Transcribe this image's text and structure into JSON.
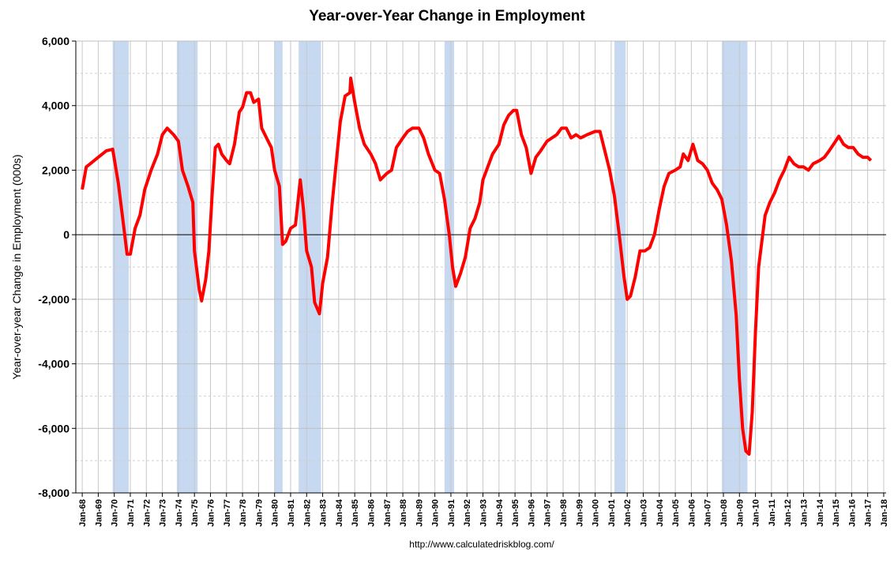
{
  "chart_data": {
    "type": "line",
    "title": "Year-over-Year Change in Employment",
    "y_label": "Year-over-year Change in Employment (000s)",
    "source": "http://www.calculatedriskblog.com/",
    "x": [
      1968.0,
      1968.25,
      1968.5,
      1969.0,
      1969.5,
      1969.9,
      1970.25,
      1970.5,
      1970.8,
      1971.0,
      1971.3,
      1971.6,
      1971.9,
      1972.3,
      1972.7,
      1973.0,
      1973.3,
      1973.7,
      1974.0,
      1974.25,
      1974.6,
      1974.9,
      1975.0,
      1975.3,
      1975.45,
      1975.7,
      1975.9,
      1976.1,
      1976.3,
      1976.5,
      1976.7,
      1977.0,
      1977.2,
      1977.5,
      1977.8,
      1978.0,
      1978.25,
      1978.5,
      1978.7,
      1979.0,
      1979.2,
      1979.5,
      1979.8,
      1980.0,
      1980.3,
      1980.5,
      1980.7,
      1981.0,
      1981.3,
      1981.6,
      1981.8,
      1982.0,
      1982.3,
      1982.5,
      1982.8,
      1983.0,
      1983.3,
      1983.6,
      1983.9,
      1984.1,
      1984.4,
      1984.7,
      1984.75,
      1985.0,
      1985.3,
      1985.6,
      1986.0,
      1986.3,
      1986.6,
      1987.0,
      1987.3,
      1987.6,
      1988.0,
      1988.3,
      1988.6,
      1989.0,
      1989.3,
      1989.6,
      1990.0,
      1990.3,
      1990.6,
      1990.9,
      1991.1,
      1991.3,
      1991.6,
      1991.9,
      1992.2,
      1992.5,
      1992.8,
      1993.0,
      1993.3,
      1993.6,
      1994.0,
      1994.3,
      1994.6,
      1994.9,
      1995.1,
      1995.4,
      1995.7,
      1996.0,
      1996.3,
      1996.6,
      1997.0,
      1997.3,
      1997.6,
      1997.9,
      1998.2,
      1998.5,
      1998.8,
      1999.1,
      1999.5,
      2000.0,
      2000.3,
      2000.6,
      2000.9,
      2001.2,
      2001.5,
      2001.8,
      2002.0,
      2002.2,
      2002.5,
      2002.8,
      2003.1,
      2003.4,
      2003.7,
      2004.0,
      2004.3,
      2004.6,
      2005.0,
      2005.3,
      2005.5,
      2005.8,
      2006.1,
      2006.4,
      2006.7,
      2007.0,
      2007.3,
      2007.6,
      2007.9,
      2008.2,
      2008.5,
      2008.8,
      2009.0,
      2009.2,
      2009.4,
      2009.6,
      2009.8,
      2010.0,
      2010.2,
      2010.4,
      2010.6,
      2010.9,
      2011.2,
      2011.5,
      2011.8,
      2012.1,
      2012.4,
      2012.7,
      2013.0,
      2013.3,
      2013.6,
      2014.0,
      2014.3,
      2014.6,
      2015.0,
      2015.2,
      2015.5,
      2015.8,
      2016.1,
      2016.4,
      2016.7,
      2017.0,
      2017.2
    ],
    "series": [
      {
        "color": "#ff0000",
        "values": [
          1400,
          2100,
          2200,
          2400,
          2600,
          2650,
          1600,
          600,
          -600,
          -600,
          200,
          600,
          1400,
          2000,
          2500,
          3100,
          3300,
          3100,
          2900,
          2000,
          1500,
          1000,
          -500,
          -1700,
          -2050,
          -1400,
          -500,
          1200,
          2700,
          2800,
          2500,
          2300,
          2200,
          2800,
          3800,
          3950,
          4400,
          4400,
          4100,
          4200,
          3300,
          3000,
          2700,
          2000,
          1500,
          -300,
          -200,
          200,
          300,
          1700,
          800,
          -500,
          -1000,
          -2100,
          -2450,
          -1500,
          -700,
          1000,
          2500,
          3500,
          4300,
          4400,
          4850,
          4100,
          3300,
          2800,
          2500,
          2200,
          1700,
          1900,
          2000,
          2700,
          3000,
          3200,
          3300,
          3300,
          3000,
          2500,
          2000,
          1900,
          1100,
          0,
          -1000,
          -1600,
          -1200,
          -700,
          200,
          500,
          1000,
          1700,
          2100,
          2500,
          2800,
          3400,
          3700,
          3850,
          3850,
          3100,
          2700,
          1900,
          2400,
          2600,
          2900,
          3000,
          3100,
          3300,
          3300,
          3000,
          3100,
          3000,
          3100,
          3200,
          3200,
          2600,
          2000,
          1200,
          0,
          -1300,
          -2000,
          -1900,
          -1300,
          -500,
          -500,
          -400,
          0,
          800,
          1500,
          1900,
          2000,
          2100,
          2500,
          2300,
          2800,
          2300,
          2200,
          2000,
          1600,
          1400,
          1100,
          300,
          -800,
          -2500,
          -4500,
          -6000,
          -6700,
          -6800,
          -5500,
          -3000,
          -1000,
          -200,
          600,
          1000,
          1300,
          1700,
          2000,
          2400,
          2200,
          2100,
          2100,
          2000,
          2200,
          2300,
          2400,
          2600,
          2900,
          3050,
          2800,
          2700,
          2700,
          2500,
          2400,
          2400,
          2300
        ]
      }
    ],
    "recessions": [
      [
        1969.9,
        1970.9
      ],
      [
        1973.9,
        1975.2
      ],
      [
        1980.0,
        1980.5
      ],
      [
        1981.5,
        1982.9
      ],
      [
        1990.6,
        1991.2
      ],
      [
        2001.2,
        2001.9
      ],
      [
        2007.9,
        2009.5
      ]
    ],
    "recession_color": "#c6d9f1",
    "xlim": [
      1967.6,
      2018.15
    ],
    "xticks": [
      {
        "value": 1968,
        "label": "Jan-68"
      },
      {
        "value": 1969,
        "label": "Jan-69"
      },
      {
        "value": 1970,
        "label": "Jan-70"
      },
      {
        "value": 1971,
        "label": "Jan-71"
      },
      {
        "value": 1972,
        "label": "Jan-72"
      },
      {
        "value": 1973,
        "label": "Jan-73"
      },
      {
        "value": 1974,
        "label": "Jan-74"
      },
      {
        "value": 1975,
        "label": "Jan-75"
      },
      {
        "value": 1976,
        "label": "Jan-76"
      },
      {
        "value": 1977,
        "label": "Jan-77"
      },
      {
        "value": 1978,
        "label": "Jan-78"
      },
      {
        "value": 1979,
        "label": "Jan-79"
      },
      {
        "value": 1980,
        "label": "Jan-80"
      },
      {
        "value": 1981,
        "label": "Jan-81"
      },
      {
        "value": 1982,
        "label": "Jan-82"
      },
      {
        "value": 1983,
        "label": "Jan-83"
      },
      {
        "value": 1984,
        "label": "Jan-84"
      },
      {
        "value": 1985,
        "label": "Jan-85"
      },
      {
        "value": 1986,
        "label": "Jan-86"
      },
      {
        "value": 1987,
        "label": "Jan-87"
      },
      {
        "value": 1988,
        "label": "Jan-88"
      },
      {
        "value": 1989,
        "label": "Jan-89"
      },
      {
        "value": 1990,
        "label": "Jan-90"
      },
      {
        "value": 1991,
        "label": "Jan-91"
      },
      {
        "value": 1992,
        "label": "Jan-92"
      },
      {
        "value": 1993,
        "label": "Jan-93"
      },
      {
        "value": 1994,
        "label": "Jan-94"
      },
      {
        "value": 1995,
        "label": "Jan-95"
      },
      {
        "value": 1996,
        "label": "Jan-96"
      },
      {
        "value": 1997,
        "label": "Jan-97"
      },
      {
        "value": 1998,
        "label": "Jan-98"
      },
      {
        "value": 1999,
        "label": "Jan-99"
      },
      {
        "value": 2000,
        "label": "Jan-00"
      },
      {
        "value": 2001,
        "label": "Jan-01"
      },
      {
        "value": 2002,
        "label": "Jan-02"
      },
      {
        "value": 2003,
        "label": "Jan-03"
      },
      {
        "value": 2004,
        "label": "Jan-04"
      },
      {
        "value": 2005,
        "label": "Jan-05"
      },
      {
        "value": 2006,
        "label": "Jan-06"
      },
      {
        "value": 2007,
        "label": "Jan-07"
      },
      {
        "value": 2008,
        "label": "Jan-08"
      },
      {
        "value": 2009,
        "label": "Jan-09"
      },
      {
        "value": 2010,
        "label": "Jan-10"
      },
      {
        "value": 2011,
        "label": "Jan-11"
      },
      {
        "value": 2012,
        "label": "Jan-12"
      },
      {
        "value": 2013,
        "label": "Jan-13"
      },
      {
        "value": 2014,
        "label": "Jan-14"
      },
      {
        "value": 2015,
        "label": "Jan-15"
      },
      {
        "value": 2016,
        "label": "Jan-16"
      },
      {
        "value": 2017,
        "label": "Jan-17"
      },
      {
        "value": 2018,
        "label": "Jan-18"
      }
    ],
    "ylim": [
      -8000,
      6000
    ],
    "yticks": [
      {
        "value": -8000,
        "label": "-8,000"
      },
      {
        "value": -6000,
        "label": "-6,000"
      },
      {
        "value": -4000,
        "label": "-4,000"
      },
      {
        "value": -2000,
        "label": "-2,000"
      },
      0,
      {
        "value": 2000,
        "label": "2,000"
      },
      {
        "value": 4000,
        "label": "4,000"
      },
      {
        "value": 6000,
        "label": "6,000"
      }
    ],
    "minor_yticks": [
      -7000,
      -5000,
      -3000,
      -1000,
      1000,
      3000,
      5000
    ],
    "grid": true
  }
}
